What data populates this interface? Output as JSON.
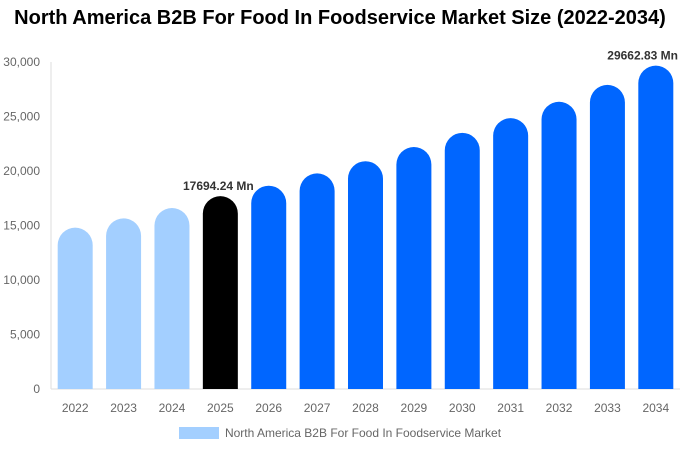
{
  "chart_data": {
    "type": "bar",
    "title": "North America B2B For Food In Foodservice Market Size (2022-2034)",
    "categories": [
      "2022",
      "2023",
      "2024",
      "2025",
      "2026",
      "2027",
      "2028",
      "2029",
      "2030",
      "2031",
      "2032",
      "2033",
      "2034"
    ],
    "series": [
      {
        "name": "North America B2B For Food In Foodservice Market",
        "values": [
          14800,
          15650,
          16600,
          17694.24,
          18650,
          19780,
          20900,
          22200,
          23500,
          24850,
          26350,
          27900,
          29662.83
        ]
      }
    ],
    "ylim": [
      0,
      30000
    ],
    "yticks": [
      0,
      5000,
      10000,
      15000,
      20000,
      25000,
      30000
    ],
    "ytick_labels": [
      "0",
      "5,000",
      "10,000",
      "15,000",
      "20,000",
      "25,000",
      "30,000"
    ],
    "data_labels": {
      "2025": "17694.24 Mn",
      "2034": "29662.83 Mn"
    },
    "colors": {
      "historical": "#a3cfff",
      "current": "#000000",
      "forecast": "#0066ff"
    },
    "grid": false,
    "legend": "bottom"
  }
}
